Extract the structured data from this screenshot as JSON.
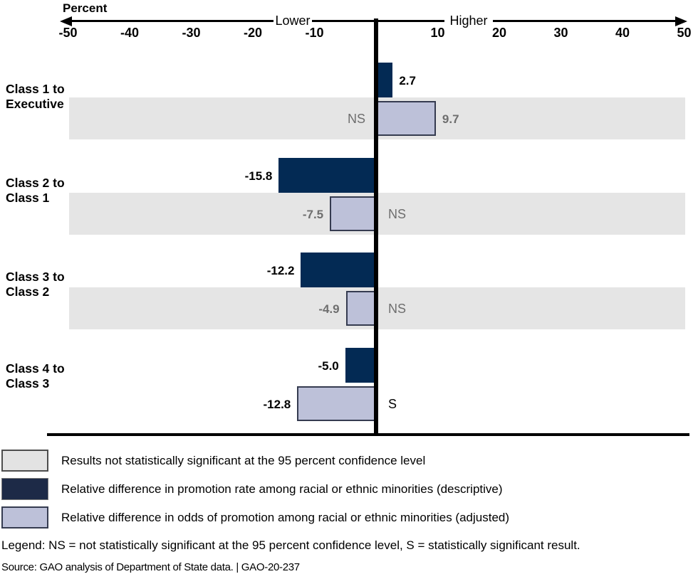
{
  "axis": {
    "title": "Percent",
    "lower": "Lower",
    "higher": "Higher"
  },
  "chart_data": {
    "type": "bar",
    "orientation": "horizontal",
    "title": "",
    "xlabel": "Percent",
    "xlim": [
      -50,
      50
    ],
    "ticks": [
      -50,
      -40,
      -30,
      -20,
      -10,
      10,
      20,
      30,
      40,
      50
    ],
    "direction_labels": {
      "negative": "Lower",
      "positive": "Higher"
    },
    "categories": [
      "Class 1 to Executive",
      "Class 2 to Class 1",
      "Class 3 to Class 2",
      "Class 4 to Class 3"
    ],
    "series": [
      {
        "name": "Relative difference in promotion rate among racial or ethnic minorities (descriptive)",
        "values": [
          2.7,
          -15.8,
          -12.2,
          -5.0
        ]
      },
      {
        "name": "Relative difference in odds of promotion among racial or ethnic minorities (adjusted)",
        "values": [
          9.7,
          -7.5,
          -4.9,
          -12.8
        ],
        "significance": [
          "NS",
          "NS",
          "NS",
          "S"
        ]
      }
    ],
    "groups": [
      {
        "label_lines": [
          "Class 1 to",
          "Executive"
        ],
        "descriptive": 2.7,
        "descriptive_label": "2.7",
        "adjusted": 9.7,
        "adjusted_label": "9.7",
        "adjusted_significance": "NS"
      },
      {
        "label_lines": [
          "Class 2 to",
          "Class 1"
        ],
        "descriptive": -15.8,
        "descriptive_label": "-15.8",
        "adjusted": -7.5,
        "adjusted_label": "-7.5",
        "adjusted_significance": "NS"
      },
      {
        "label_lines": [
          "Class 3 to",
          "Class 2"
        ],
        "descriptive": -12.2,
        "descriptive_label": "-12.2",
        "adjusted": -4.9,
        "adjusted_label": "-4.9",
        "adjusted_significance": "NS"
      },
      {
        "label_lines": [
          "Class 4 to",
          "Class 3"
        ],
        "descriptive": -5.0,
        "descriptive_label": "-5.0",
        "adjusted": -12.8,
        "adjusted_label": "-12.8",
        "adjusted_significance": "S"
      }
    ]
  },
  "colors": {
    "descriptive_bar": "#032a54",
    "descriptive_legend": "#1d2a47",
    "adjusted_fill": "#bdc1d9",
    "adjusted_border": "#353b50",
    "ns_band": "#e5e5e5",
    "ns_band_legend": "#e3e3e3",
    "ns_band_legend_border": "#4d4d4d",
    "gray_text": "#6e6e6e",
    "black_text": "#000000"
  },
  "legend": {
    "items": [
      {
        "label": "Results not statistically significant at the 95 percent confidence level"
      },
      {
        "label": "Relative difference in promotion rate among racial or ethnic minorities (descriptive)"
      },
      {
        "label": "Relative difference in odds of promotion among racial or ethnic minorities (adjusted)"
      }
    ]
  },
  "footer": {
    "legend_note": "Legend: NS = not statistically significant at the 95 percent confidence level, S = statistically significant result.",
    "source": "Source: GAO analysis of Department of State data.   |   GAO-20-237"
  }
}
